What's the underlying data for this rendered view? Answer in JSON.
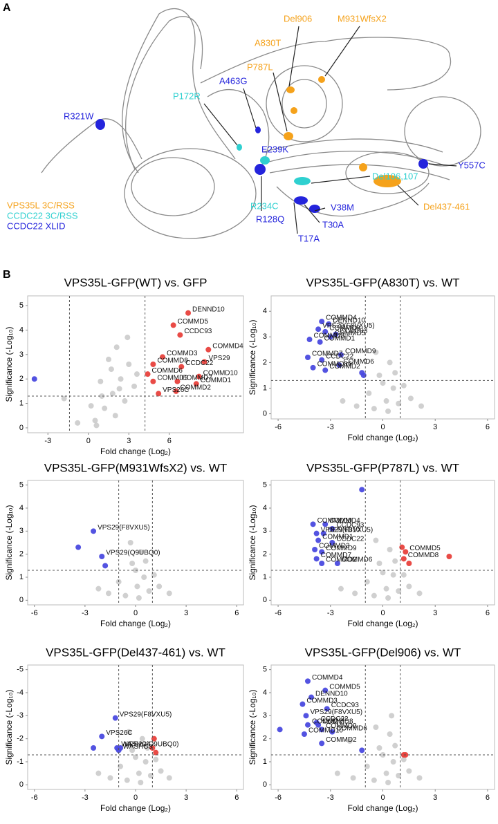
{
  "panel_a": {
    "label": "A",
    "legend": [
      {
        "text": "VPS35L 3C/RSS",
        "color": "#f5a21b"
      },
      {
        "text": "CCDC22 3C/RSS",
        "color": "#2fd0d0"
      },
      {
        "text": "CCDC22 XLID",
        "color": "#2424dc"
      }
    ],
    "mutations": [
      {
        "text": "Del906",
        "group": 0
      },
      {
        "text": "M931WfsX2",
        "group": 0
      },
      {
        "text": "A830T",
        "group": 0
      },
      {
        "text": "P787L",
        "group": 0
      },
      {
        "text": "A463G",
        "group": 2
      },
      {
        "text": "P172R",
        "group": 1
      },
      {
        "text": "R321W",
        "group": 2
      },
      {
        "text": "E239K",
        "group": 2
      },
      {
        "text": "Y557C",
        "group": 2
      },
      {
        "text": "Del106,107",
        "group": 1
      },
      {
        "text": "Del437-461",
        "group": 0
      },
      {
        "text": "R234C",
        "group": 1
      },
      {
        "text": "V38M",
        "group": 2
      },
      {
        "text": "R128Q",
        "group": 2
      },
      {
        "text": "T30A",
        "group": 2
      },
      {
        "text": "T17A",
        "group": 2
      }
    ]
  },
  "panel_b": {
    "label": "B"
  },
  "chart_data": [
    {
      "type": "scatter",
      "title": "VPS35L-GFP(WT) vs. GFP",
      "x_label": "Fold change (Log₂)",
      "y_label": "Significance (-Log₁₀)",
      "xlim": [
        -4.5,
        11.5
      ],
      "ylim": [
        -0.2,
        5.4
      ],
      "xticks": [
        -3,
        0,
        3,
        6
      ],
      "yticks": [
        0,
        1,
        2,
        3,
        4,
        5
      ],
      "vlines": [
        -1.4,
        4.2
      ],
      "hline": 1.3,
      "series": [
        {
          "color": "#c8c8c8",
          "x": [
            0.5,
            1.2,
            1.8,
            2.4,
            3.0,
            0.9,
            1.5,
            2.1,
            2.7,
            3.4,
            0.2,
            1.0,
            2.0,
            2.9,
            3.6,
            -0.8,
            -1.8,
            1.7,
            2.3,
            0.6
          ],
          "values": [
            0.3,
            0.8,
            1.4,
            2.0,
            2.6,
            1.9,
            2.8,
            3.3,
            1.1,
            1.7,
            0.9,
            1.3,
            0.5,
            3.7,
            2.2,
            0.2,
            1.2,
            2.4,
            1.6,
            0.1
          ]
        },
        {
          "color": "#4a4adf",
          "x": [
            -4.0
          ],
          "values": [
            2.0
          ],
          "labels": [
            null
          ]
        },
        {
          "color": "#e8413c",
          "x": [
            7.4,
            6.3,
            6.8,
            8.9,
            5.5,
            8.6,
            4.8,
            6.9,
            4.4,
            8.2,
            4.8,
            6.6,
            8.0,
            5.2,
            6.5
          ],
          "values": [
            4.7,
            4.2,
            3.8,
            3.2,
            2.9,
            2.7,
            2.6,
            2.5,
            2.2,
            2.1,
            1.9,
            1.9,
            1.8,
            1.4,
            1.5
          ],
          "labels": [
            "DENND10",
            "COMMD5",
            "CCDC93",
            "COMMD4",
            "COMMD3",
            "VPS29",
            "COMMD8",
            "CCDC22",
            "COMMD6",
            "COMMD10",
            "COMMD9",
            "COMMD7",
            "COMMD1",
            "VPS26C",
            "COMMD2"
          ]
        }
      ]
    },
    {
      "type": "scatter",
      "title": "VPS35L-GFP(A830T) vs. WT",
      "x_label": "Fold change (Log₂)",
      "y_label": "Significance (-Log₁₀)",
      "xlim": [
        -6.4,
        6.4
      ],
      "ylim": [
        -0.2,
        4.6
      ],
      "xticks": [
        -6,
        -3,
        0,
        3,
        6
      ],
      "yticks": [
        0,
        1,
        2,
        3,
        4
      ],
      "vlines": [
        -1,
        1
      ],
      "hline": 1.3,
      "series": [
        {
          "color": "#c8c8c8",
          "x": [
            -0.5,
            0.2,
            0.6,
            -0.2,
            0.9,
            -0.8,
            0.4,
            1.6,
            -1.5,
            0.0,
            0.7,
            -0.4,
            2.2,
            1.2,
            -2.3,
            0.3
          ],
          "values": [
            0.2,
            0.5,
            1.0,
            1.5,
            0.4,
            0.8,
            2.0,
            0.6,
            0.3,
            1.2,
            1.6,
            2.4,
            0.3,
            1.1,
            0.5,
            0.1
          ]
        },
        {
          "color": "#4a4adf",
          "x": [
            -3.5,
            -3.1,
            -3.7,
            -3.3,
            -2.7,
            -4.2,
            -3.0,
            -3.6,
            -2.4,
            -4.3,
            -3.5,
            -2.5,
            -4.0,
            -3.3,
            -1.2,
            -1.1
          ],
          "values": [
            3.6,
            3.5,
            3.3,
            3.2,
            3.1,
            2.9,
            3.0,
            2.8,
            2.3,
            2.2,
            2.1,
            1.9,
            1.8,
            1.7,
            1.6,
            1.5
          ],
          "labels": [
            "COMMD4",
            "DENND10",
            "VPS29(F8VXU5)",
            "COMMD8",
            "CCDC93",
            "COMMD3",
            "COMMD5",
            "COMMD1",
            "COMMD9",
            "COMMD7",
            "CCDC22",
            "COMMD6",
            "COMMD10",
            "COMMD2",
            null,
            null
          ]
        }
      ]
    },
    {
      "type": "scatter",
      "title": "VPS35L-GFP(M931WfsX2) vs. WT",
      "x_label": "Fold change (Log₂)",
      "y_label": "Significance (-Log₁₀)",
      "xlim": [
        -6.4,
        6.4
      ],
      "ylim": [
        -0.2,
        5.2
      ],
      "xticks": [
        -6,
        -3,
        0,
        3,
        6
      ],
      "yticks": [
        0,
        1,
        2,
        3,
        4,
        5
      ],
      "vlines": [
        -1,
        1
      ],
      "hline": 1.3,
      "series": [
        {
          "color": "#c8c8c8",
          "x": [
            -0.6,
            0.1,
            0.5,
            -0.2,
            0.8,
            -1.0,
            0.3,
            1.4,
            -1.6,
            0.0,
            0.6,
            -0.3,
            2.0,
            1.1,
            -2.2,
            0.2
          ],
          "values": [
            0.2,
            0.6,
            1.0,
            1.6,
            0.4,
            0.8,
            2.1,
            0.6,
            0.3,
            1.3,
            1.7,
            2.5,
            0.3,
            1.1,
            0.5,
            0.1
          ]
        },
        {
          "color": "#4a4adf",
          "x": [
            -2.5,
            -2.0,
            -3.4,
            -1.8
          ],
          "values": [
            3.0,
            1.9,
            2.3,
            1.5
          ],
          "labels": [
            "VPS29(F8VXU5)",
            "VPS29(Q9UBQ0)",
            null,
            null
          ]
        }
      ]
    },
    {
      "type": "scatter",
      "title": "VPS35L-GFP(P787L) vs. WT",
      "x_label": "Fold change (Log₂)",
      "y_label": "Significance (-Log₁₀)",
      "xlim": [
        -6.4,
        6.4
      ],
      "ylim": [
        -0.2,
        5.2
      ],
      "xticks": [
        -6,
        -3,
        0,
        3,
        6
      ],
      "yticks": [
        0,
        1,
        2,
        3,
        4,
        5
      ],
      "vlines": [
        -1,
        1
      ],
      "hline": 1.3,
      "series": [
        {
          "color": "#c8c8c8",
          "x": [
            -0.5,
            0.2,
            0.6,
            -0.2,
            0.9,
            -0.9,
            0.4,
            1.5,
            -1.6,
            0.0,
            0.7,
            -0.4,
            2.1,
            1.2,
            -2.4,
            0.3
          ],
          "values": [
            0.2,
            0.5,
            1.1,
            1.6,
            0.4,
            0.8,
            2.2,
            0.6,
            0.3,
            1.2,
            1.7,
            2.6,
            0.3,
            1.1,
            0.5,
            0.1
          ]
        },
        {
          "color": "#4a4adf",
          "x": [
            -4.0,
            -3.3,
            -2.9,
            -3.8,
            -3.4,
            -3.7,
            -2.9,
            -3.9,
            -3.5,
            -3.8,
            -2.6,
            -3.5,
            -1.2
          ],
          "values": [
            3.3,
            3.3,
            3.1,
            2.9,
            2.9,
            2.6,
            2.5,
            2.2,
            2.1,
            1.8,
            1.6,
            1.6,
            4.8
          ],
          "labels": [
            "COMMD10",
            "COMMD4",
            "CCDC93",
            "VPS29(F8VXU5)",
            "DENND10",
            "COMMD1",
            "CCDC22",
            "COMMD3",
            "COMMD9",
            "COMMD7",
            "COMMD6",
            "COMMD2",
            null
          ]
        },
        {
          "color": "#e8413c",
          "x": [
            1.3,
            1.2,
            3.8,
            1.5,
            1.1
          ],
          "values": [
            2.1,
            1.8,
            1.9,
            1.6,
            2.3
          ],
          "labels": [
            "COMMD5",
            "COMMD8",
            null,
            null,
            null
          ]
        }
      ]
    },
    {
      "type": "scatter",
      "title": "VPS35L-GFP(Del437-461) vs. WT",
      "x_label": "Fold change (Log₂)",
      "y_label": "Significance (-Log₁₀)",
      "xlim": [
        -6.4,
        6.4
      ],
      "ylim": [
        -0.2,
        5.2
      ],
      "xticks": [
        -6,
        -3,
        0,
        3,
        6
      ],
      "yticks": [
        0,
        {
          "value": 1,
          "label": "-1"
        },
        {
          "value": 2,
          "label": "-2"
        },
        {
          "value": 3,
          "label": "-3"
        },
        {
          "value": 4,
          "label": "-4"
        },
        {
          "value": 5,
          "label": "-5"
        }
      ],
      "vlines": [
        -1,
        1
      ],
      "hline": 1.3,
      "series": [
        {
          "color": "#c8c8c8",
          "x": [
            -0.5,
            0.2,
            0.6,
            -0.2,
            0.9,
            -0.9,
            0.4,
            1.5,
            -1.5,
            0.0,
            0.7,
            -0.4,
            2.0,
            1.2,
            -2.2,
            0.3
          ],
          "values": [
            0.2,
            0.5,
            1.0,
            1.5,
            0.4,
            0.8,
            2.0,
            0.6,
            0.3,
            1.2,
            1.6,
            2.3,
            0.3,
            1.1,
            0.5,
            0.1
          ]
        },
        {
          "color": "#4a4adf",
          "x": [
            -1.2,
            -2.0,
            -1.1,
            -1.0,
            -0.9,
            -2.5
          ],
          "values": [
            2.9,
            2.1,
            1.6,
            1.5,
            1.6,
            1.6
          ],
          "labels": [
            "VPS29(F8VXU5)",
            "VPS26C",
            "WASHC4",
            "WASHC3",
            "VPS29(Q9UBQ0)",
            null
          ]
        },
        {
          "color": "#e8413c",
          "x": [
            1.1,
            1.0,
            1.2
          ],
          "values": [
            2.0,
            1.6,
            1.4
          ],
          "labels": [
            null,
            null,
            null
          ]
        }
      ]
    },
    {
      "type": "scatter",
      "title": "VPS35L-GFP(Del906) vs. WT",
      "x_label": "Fold change (Log₂)",
      "y_label": "Significance (-Log₁₀)",
      "xlim": [
        -6.4,
        6.4
      ],
      "ylim": [
        -0.2,
        5.2
      ],
      "xticks": [
        -6,
        -3,
        0,
        3,
        6
      ],
      "yticks": [
        0,
        1,
        2,
        3,
        4,
        5
      ],
      "vlines": [
        -1,
        1
      ],
      "hline": 1.3,
      "series": [
        {
          "color": "#c8c8c8",
          "x": [
            -0.5,
            0.2,
            0.6,
            -0.2,
            0.9,
            -0.9,
            0.4,
            1.5,
            -1.7,
            0.0,
            0.7,
            -0.4,
            2.1,
            1.2,
            -2.6,
            0.3,
            -1.9,
            0.5
          ],
          "values": [
            0.2,
            0.5,
            1.0,
            1.6,
            0.4,
            0.8,
            2.2,
            0.6,
            0.3,
            1.3,
            1.7,
            2.5,
            0.3,
            1.1,
            0.5,
            0.1,
            1.9,
            3.0
          ]
        },
        {
          "color": "#4a4adf",
          "x": [
            -4.3,
            -3.3,
            -4.1,
            -4.6,
            -3.2,
            -4.4,
            -3.8,
            -3.7,
            -4.3,
            -2.9,
            -3.5,
            -4.5,
            -3.5,
            -5.9,
            -1.2
          ],
          "values": [
            4.5,
            4.1,
            3.8,
            3.5,
            3.3,
            3.0,
            2.7,
            2.6,
            2.6,
            2.3,
            2.4,
            2.2,
            1.8,
            2.4,
            1.5
          ],
          "labels": [
            "COMMD4",
            "COMMD5",
            "DENND10",
            "COMMD3",
            "CCDC93",
            "VPS29(F8VXU5)",
            "CCDC22",
            "COMMD8",
            "COMMD7",
            "COMMD6",
            "COMMD9",
            "COMMD10",
            "COMMD2",
            null,
            null
          ]
        },
        {
          "color": "#e8413c",
          "x": [
            1.2,
            1.3
          ],
          "values": [
            1.3,
            1.3
          ],
          "labels": [
            null,
            null
          ]
        }
      ]
    }
  ]
}
